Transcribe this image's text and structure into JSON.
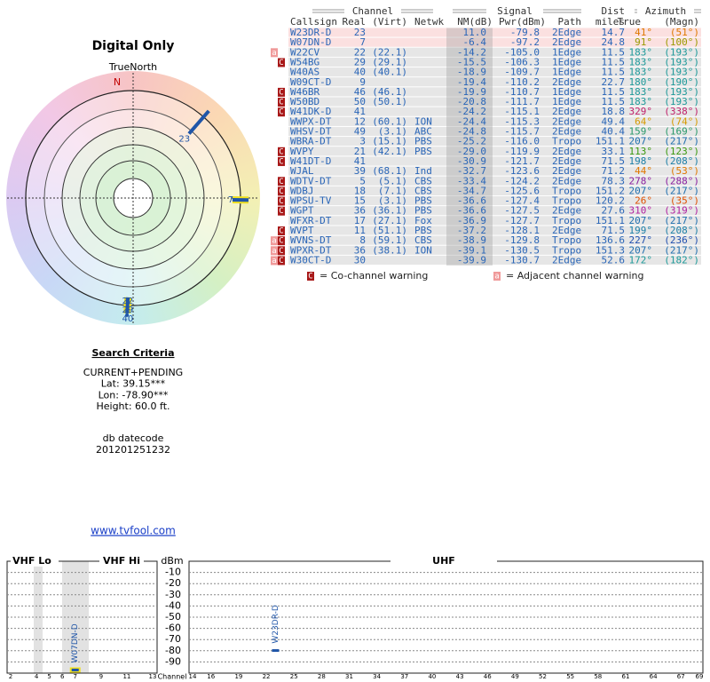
{
  "polar": {
    "title": "Digital Only",
    "north_label": "TrueNorth",
    "n": "N",
    "markers": [
      {
        "label": "23",
        "azimuth": 41,
        "color": "#1f55a8"
      },
      {
        "label": "7",
        "azimuth": 91,
        "color": "#1f55a8"
      },
      {
        "label": "22",
        "azimuth": 183,
        "color": "#1f55a8"
      },
      {
        "label": "29",
        "azimuth": 183,
        "color": "#1f55a8"
      },
      {
        "label": "40",
        "azimuth": 183,
        "color": "#1f55a8"
      }
    ]
  },
  "table": {
    "group_headers": [
      "Channel",
      "Signal",
      "Azimuth"
    ],
    "dist_top": "Dist",
    "headers": [
      "Callsign",
      "Real",
      "(Virt)",
      "Netwk",
      "NM(dB)",
      "Pwr(dBm)",
      "Path",
      "miles",
      "True",
      "(Magn)"
    ],
    "rows": [
      [
        "W23DR-D",
        "23",
        "",
        "",
        "11.0",
        "-79.8",
        "2Edge",
        "14.7",
        "41°",
        "(51°)"
      ],
      [
        "W07DN-D",
        "7",
        "",
        "",
        "-6.4",
        "-97.2",
        "2Edge",
        "24.8",
        "91°",
        "(100°)"
      ],
      [
        "W22CV",
        "22",
        "(22.1)",
        "",
        "-14.2",
        "-105.0",
        "1Edge",
        "11.5",
        "183°",
        "(193°)"
      ],
      [
        "W54BG",
        "29",
        "(29.1)",
        "",
        "-15.5",
        "-106.3",
        "1Edge",
        "11.5",
        "183°",
        "(193°)"
      ],
      [
        "W40AS",
        "40",
        "(40.1)",
        "",
        "-18.9",
        "-109.7",
        "1Edge",
        "11.5",
        "183°",
        "(193°)"
      ],
      [
        "W09CT-D",
        "9",
        "",
        "",
        "-19.4",
        "-110.2",
        "2Edge",
        "22.7",
        "180°",
        "(190°)"
      ],
      [
        "W46BR",
        "46",
        "(46.1)",
        "",
        "-19.9",
        "-110.7",
        "1Edge",
        "11.5",
        "183°",
        "(193°)"
      ],
      [
        "W50BD",
        "50",
        "(50.1)",
        "",
        "-20.8",
        "-111.7",
        "1Edge",
        "11.5",
        "183°",
        "(193°)"
      ],
      [
        "W41DK-D",
        "41",
        "",
        "",
        "-24.2",
        "-115.1",
        "2Edge",
        "18.8",
        "329°",
        "(338°)"
      ],
      [
        "WWPX-DT",
        "12",
        "(60.1)",
        "ION",
        "-24.4",
        "-115.3",
        "2Edge",
        "49.4",
        "64°",
        "(74°)"
      ],
      [
        "WHSV-DT",
        "49",
        "(3.1)",
        "ABC",
        "-24.8",
        "-115.7",
        "2Edge",
        "40.4",
        "159°",
        "(169°)"
      ],
      [
        "WBRA-DT",
        "3",
        "(15.1)",
        "PBS",
        "-25.2",
        "-116.0",
        "Tropo",
        "151.1",
        "207°",
        "(217°)"
      ],
      [
        "WVPY",
        "21",
        "(42.1)",
        "PBS",
        "-29.0",
        "-119.9",
        "2Edge",
        "33.1",
        "113°",
        "(123°)"
      ],
      [
        "W41DT-D",
        "41",
        "",
        "",
        "-30.9",
        "-121.7",
        "2Edge",
        "71.5",
        "198°",
        "(208°)"
      ],
      [
        "WJAL",
        "39",
        "(68.1)",
        "Ind",
        "-32.7",
        "-123.6",
        "2Edge",
        "71.2",
        "44°",
        "(53°)"
      ],
      [
        "WDTV-DT",
        "5",
        "(5.1)",
        "CBS",
        "-33.4",
        "-124.2",
        "2Edge",
        "78.3",
        "278°",
        "(288°)"
      ],
      [
        "WDBJ",
        "18",
        "(7.1)",
        "CBS",
        "-34.7",
        "-125.6",
        "Tropo",
        "151.2",
        "207°",
        "(217°)"
      ],
      [
        "WPSU-TV",
        "15",
        "(3.1)",
        "PBS",
        "-36.6",
        "-127.4",
        "Tropo",
        "120.2",
        "26°",
        "(35°)"
      ],
      [
        "WGPT",
        "36",
        "(36.1)",
        "PBS",
        "-36.6",
        "-127.5",
        "2Edge",
        "27.6",
        "310°",
        "(319°)"
      ],
      [
        "WFXR-DT",
        "17",
        "(27.1)",
        "Fox",
        "-36.9",
        "-127.7",
        "Tropo",
        "151.1",
        "207°",
        "(217°)"
      ],
      [
        "WVPT",
        "11",
        "(51.1)",
        "PBS",
        "-37.2",
        "-128.1",
        "2Edge",
        "71.5",
        "199°",
        "(208°)"
      ],
      [
        "WVNS-DT",
        "8",
        "(59.1)",
        "CBS",
        "-38.9",
        "-129.8",
        "Tropo",
        "136.6",
        "227°",
        "(236°)"
      ],
      [
        "WPXR-DT",
        "36",
        "(38.1)",
        "ION",
        "-39.1",
        "-130.5",
        "Tropo",
        "151.3",
        "207°",
        "(217°)"
      ],
      [
        "W30CT-D",
        "30",
        "",
        "",
        "-39.9",
        "-130.7",
        "2Edge",
        "52.6",
        "172°",
        "(182°)"
      ]
    ],
    "flags": [
      [],
      [],
      [
        "a"
      ],
      [
        "C"
      ],
      [],
      [],
      [
        "C"
      ],
      [
        "C"
      ],
      [
        "C"
      ],
      [],
      [],
      [],
      [
        "C"
      ],
      [
        "C"
      ],
      [],
      [
        "C"
      ],
      [
        "C"
      ],
      [
        "C"
      ],
      [
        "C"
      ],
      [],
      [
        "C"
      ],
      [
        "C",
        "a"
      ],
      [
        "C",
        "a"
      ],
      [
        "C",
        "a"
      ]
    ],
    "azimuth_colors": [
      "#e07800",
      "#9a9a00",
      "#1e9a9a",
      "#1e9a9a",
      "#1e9a9a",
      "#1e9a9a",
      "#1e9a9a",
      "#1e9a9a",
      "#c0206a",
      "#d69a00",
      "#2a9a6a",
      "#2070b0",
      "#3a9a10",
      "#1e80a8",
      "#e07800",
      "#8a20a0",
      "#2070b0",
      "#e05000",
      "#b020a0",
      "#2070b0",
      "#1e80a8",
      "#2050b0",
      "#2070b0",
      "#1e9a9a"
    ],
    "highlighted_rows": [
      0,
      1
    ]
  },
  "legend": [
    {
      "icon": "C",
      "text": "= Co-channel warning"
    },
    {
      "icon": "a",
      "text": "= Adjacent channel warning"
    }
  ],
  "search": {
    "title": "Search Criteria",
    "lines": [
      "CURRENT+PENDING",
      "Lat: 39.15***",
      "Lon: -78.90***",
      "Height: 60.0 ft."
    ],
    "datecode_label": "db datecode",
    "datecode": "201201251232"
  },
  "link": "www.tvfool.com",
  "spectrum": {
    "sections": [
      "VHF Lo",
      "VHF Hi",
      "UHF"
    ],
    "y_label": "dBm",
    "x_label": "Channel",
    "ylim": [
      -100,
      0
    ],
    "yticks": [
      -10,
      -20,
      -30,
      -40,
      -50,
      -60,
      -70,
      -80,
      -90
    ],
    "vhf_xlim": [
      2,
      13
    ],
    "vhf_xticks": [
      2,
      4,
      5,
      6,
      7,
      9,
      11,
      13
    ],
    "uhf_xlim": [
      14,
      69
    ],
    "uhf_xticks": [
      14,
      16,
      19,
      22,
      25,
      28,
      31,
      34,
      37,
      40,
      43,
      46,
      49,
      52,
      55,
      58,
      61,
      64,
      67,
      69
    ],
    "signals": [
      {
        "callsign": "W07DN-D",
        "channel": 7,
        "dbm": -97.2,
        "color": "#1f55a8"
      },
      {
        "callsign": "W23DR-D",
        "channel": 23,
        "dbm": -79.8,
        "color": "#1f55a8"
      }
    ]
  }
}
